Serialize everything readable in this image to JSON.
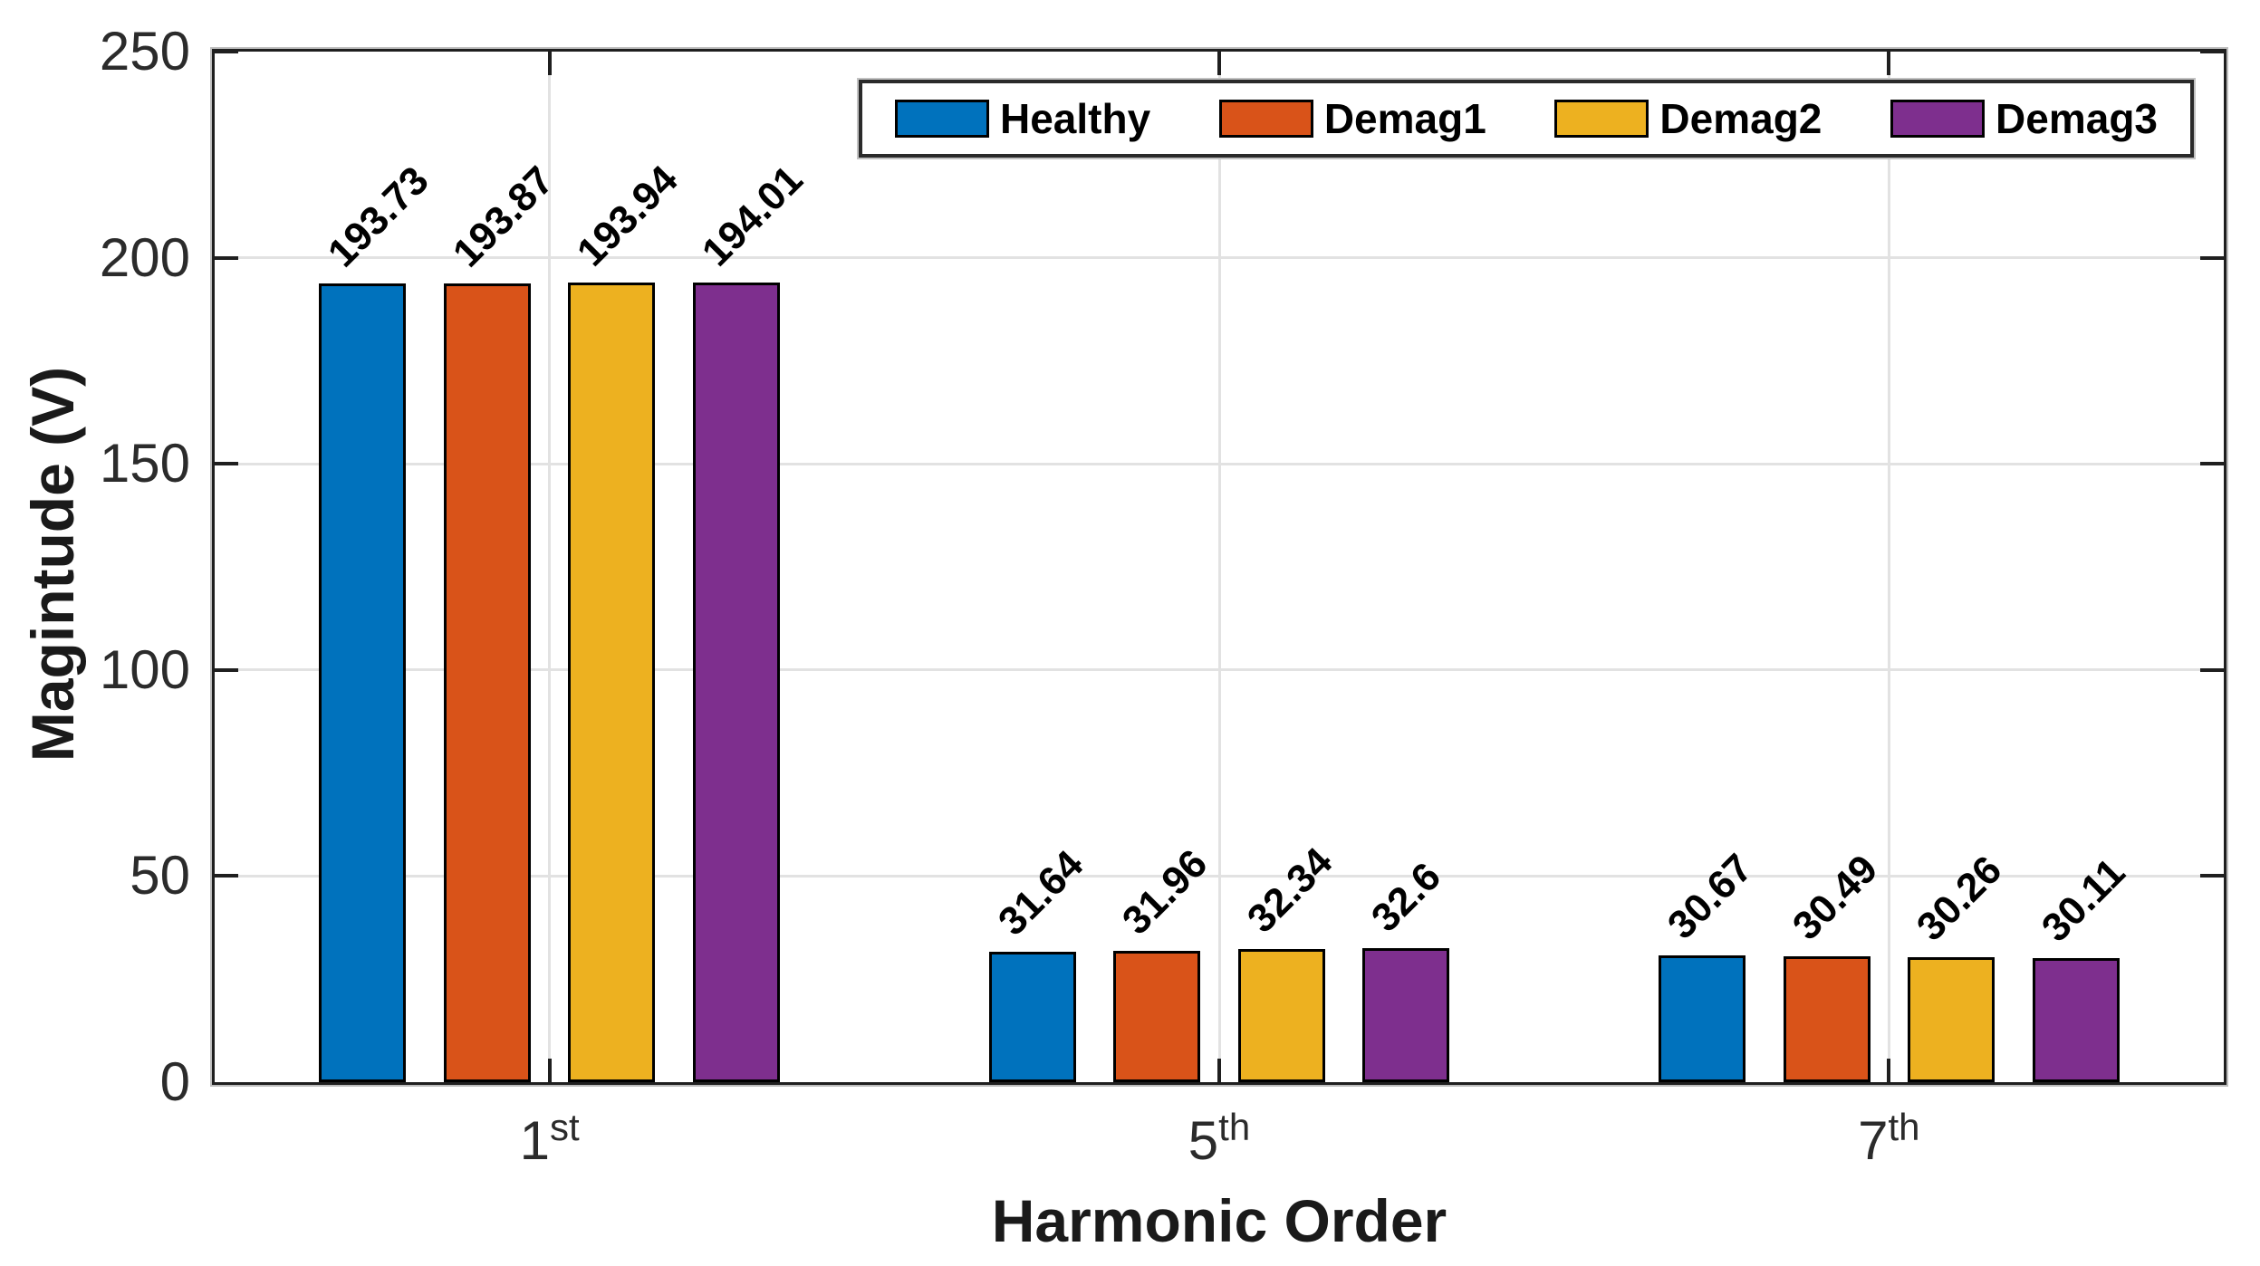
{
  "chart_data": {
    "type": "bar",
    "title": "",
    "xlabel": "Harmonic Order",
    "ylabel": "Magintude (V)",
    "ylim": [
      0,
      250
    ],
    "yticks": [
      0,
      50,
      100,
      150,
      200,
      250
    ],
    "grid": true,
    "legend_position": "top-inside-horizontal",
    "categories": [
      {
        "text": "1",
        "sup": "st"
      },
      {
        "text": "5",
        "sup": "th"
      },
      {
        "text": "7",
        "sup": "th"
      }
    ],
    "series": [
      {
        "name": "Healthy",
        "color": "#0072BD",
        "values": [
          193.73,
          31.64,
          30.67
        ]
      },
      {
        "name": "Demag1",
        "color": "#D95319",
        "values": [
          193.87,
          31.96,
          30.49
        ]
      },
      {
        "name": "Demag2",
        "color": "#EDB120",
        "values": [
          193.94,
          32.34,
          30.26
        ]
      },
      {
        "name": "Demag3",
        "color": "#7E2F8E",
        "values": [
          194.01,
          32.6,
          30.11
        ]
      }
    ],
    "colors": {
      "axis": "#1f1f1f",
      "grid": "#e2e2e2",
      "bar_edge": "#000000",
      "background": "#ffffff"
    }
  }
}
